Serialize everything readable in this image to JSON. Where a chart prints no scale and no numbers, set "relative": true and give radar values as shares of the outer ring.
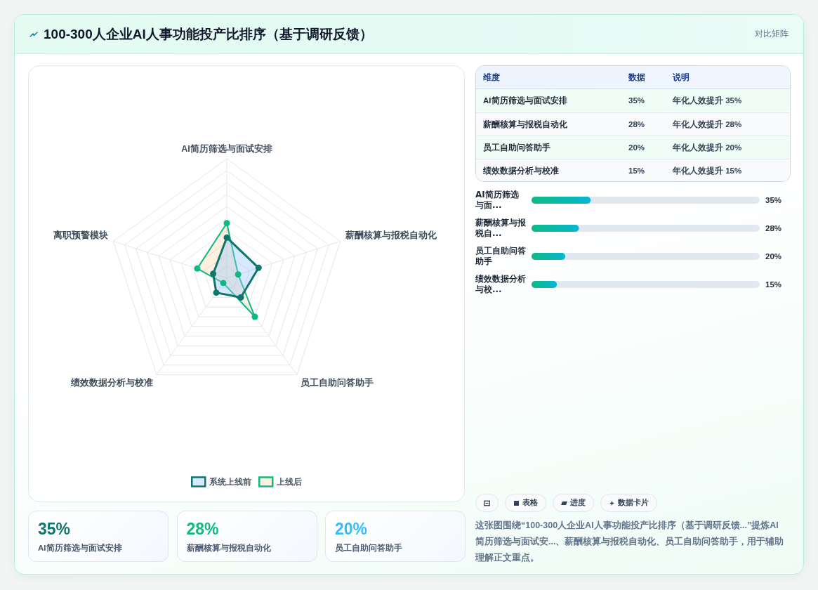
{
  "chart_data": [
    {
      "type": "other",
      "title": "100-300人企业AI人事功能投产比排序（基于调研反馈）",
      "subtitle": "对比矩阵"
    },
    {
      "type": "radar",
      "categories": [
        "AI简历筛选与面试安排",
        "薪酬核算与报税自动化",
        "员工自助问答助手",
        "绩效数据分析与校准",
        "离职预警模块"
      ],
      "series": [
        {
          "name": "系统上线前",
          "color": "#0f766e",
          "values": [
            0.34,
            0.28,
            0.2,
            0.15,
            0.12
          ]
        },
        {
          "name": "上线后",
          "color": "#10b981",
          "values": [
            0.46,
            0.1,
            0.4,
            0.05,
            0.26
          ]
        }
      ],
      "relative": true,
      "grid": true,
      "legend": "bottom",
      "marker": "circle"
    },
    {
      "type": "other",
      "categories": [
        "AI简历筛选与面试安排",
        "薪酬核算与报税自动化",
        "员工自助问答助手",
        "绩效数据分析与校准"
      ],
      "annotations": [
        "维度",
        "数据",
        "说明",
        "35%",
        "年化人效提升 35%",
        "28%",
        "年化人效提升 28%",
        "20%",
        "年化人效提升 20%",
        "15%",
        "年化人效提升 15%"
      ]
    },
    {
      "type": "bar",
      "orientation": "horizontal",
      "categories": [
        "AI简历筛选与面...",
        "薪酬核算与报税自...",
        "员工自助问答助手",
        "绩效数据分析与校..."
      ],
      "values": [
        35,
        28,
        20,
        15
      ],
      "value_labels": [
        "35%",
        "28%",
        "20%",
        "15%"
      ],
      "color": "#10b981",
      "xlim": [
        0,
        135
      ]
    },
    {
      "type": "other",
      "categories": [
        "AI简历筛选与面试安排",
        "薪酬核算与报税自动化",
        "员工自助问答助手"
      ],
      "annotations": [
        "35%",
        "28%",
        "20%"
      ]
    },
    {
      "type": "other",
      "categories": [
        null,
        "表格",
        "进度",
        "数据卡片"
      ],
      "annotations": [
        "这张图围绕“100-300人企业AI人事功能投产比排序（基于调研反馈...”提炼AI简历筛选与面试安...、薪酬核算与报税自动化、员工自助问答助手，用于辅助理解正文重点。"
      ]
    }
  ]
}
